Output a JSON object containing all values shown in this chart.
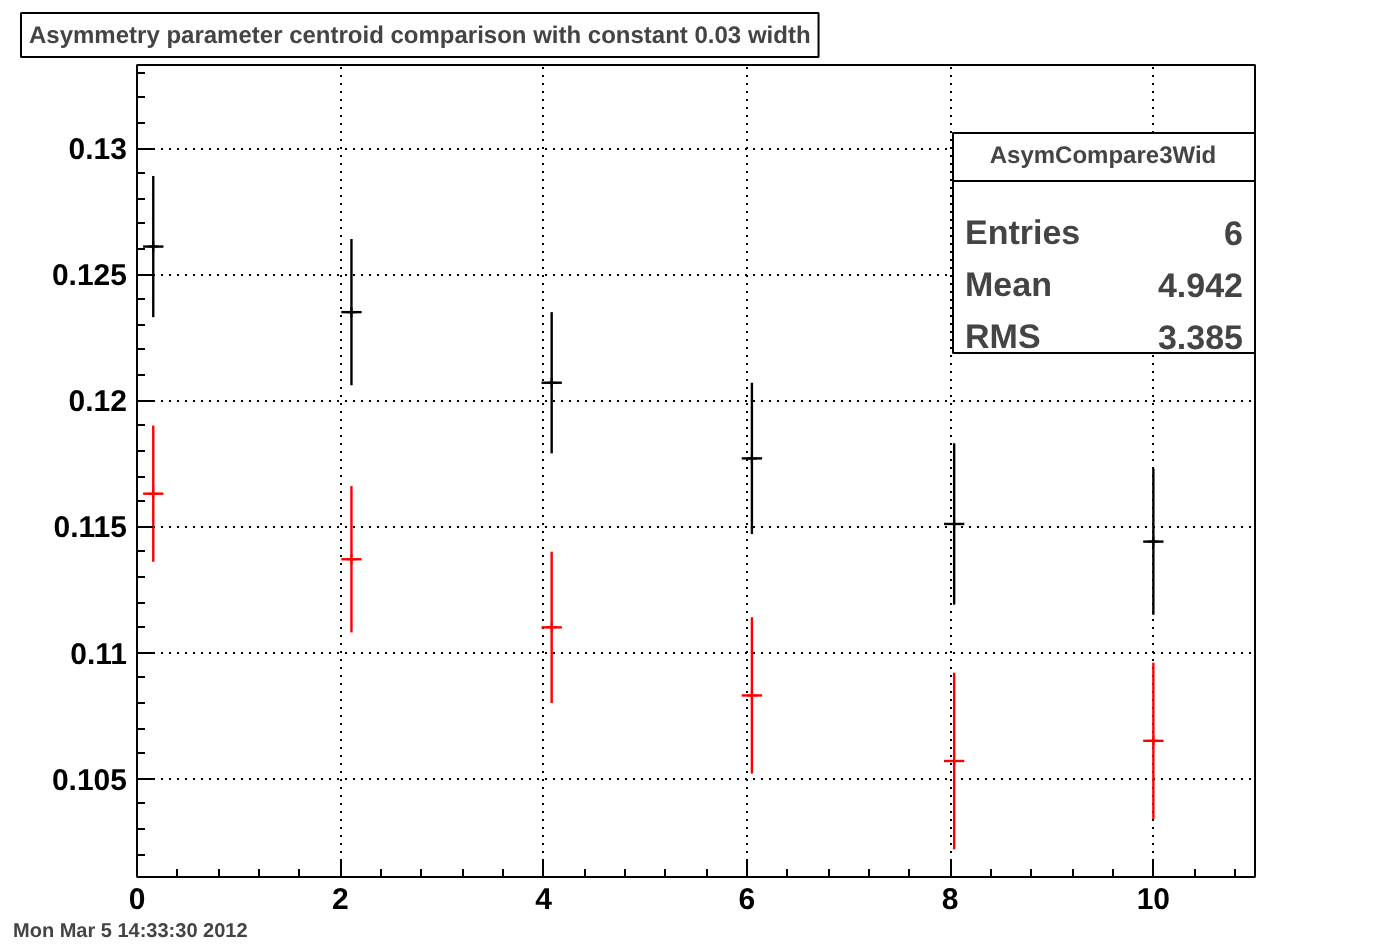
{
  "chart_data": {
    "type": "scatter",
    "title": "Asymmetry parameter centroid comparison with constant 0.03 width",
    "x": [
      0.16,
      2.11,
      4.08,
      6.05,
      8.04,
      10.0
    ],
    "series": [
      {
        "color": "#000000",
        "values": [
          0.1261,
          0.1235,
          0.1207,
          0.1177,
          0.1151,
          0.1144
        ],
        "errors": [
          0.0028,
          0.0029,
          0.0028,
          0.003,
          0.0032,
          0.0029
        ],
        "xerrors": [
          0.1,
          0.1,
          0.1,
          0.1,
          0.1,
          0.1
        ]
      },
      {
        "color": "#ff0000",
        "values": [
          0.1163,
          0.1137,
          0.111,
          0.1083,
          0.1057,
          0.1065
        ],
        "errors": [
          0.0027,
          0.0029,
          0.003,
          0.0031,
          0.0035,
          0.0031
        ],
        "xerrors": [
          0.1,
          0.1,
          0.1,
          0.1,
          0.1,
          0.1
        ]
      }
    ],
    "xlim": [
      0,
      11
    ],
    "xticks": [
      0,
      2,
      4,
      6,
      8,
      10
    ],
    "ylim": [
      0.1011,
      0.1333
    ],
    "yticks": [
      0.105,
      0.11,
      0.115,
      0.12,
      0.125,
      0.13
    ],
    "grid": true,
    "marker": "cross",
    "legend": false,
    "annotations": [
      "AsymCompare3Wid",
      "Entries",
      "6",
      "Mean",
      "4.942",
      "RMS",
      "3.385",
      "Mon Mar  5 14:33:30 2012"
    ]
  }
}
